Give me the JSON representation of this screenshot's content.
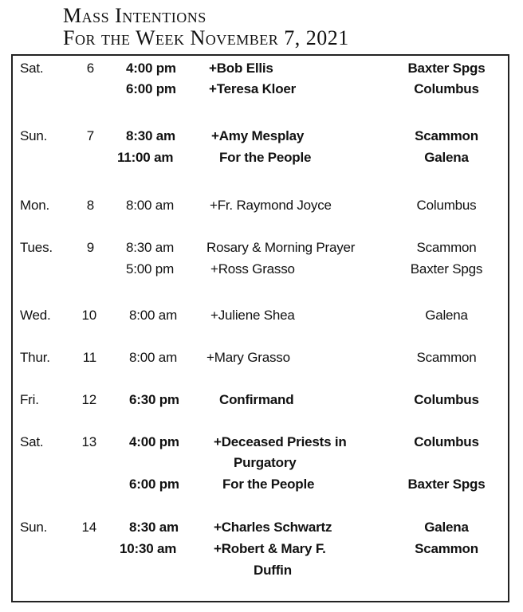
{
  "title": {
    "line1": "Mass Intentions",
    "line2": "For the Week November 7, 2021"
  },
  "lines": [
    {
      "day": "Sat.",
      "date": "6",
      "time": "4:00 pm",
      "intention": "+Bob Ellis",
      "location": "Baxter Spgs",
      "bold": true
    },
    {
      "day": "",
      "date": "",
      "time": "6:00 pm",
      "intention": "+Teresa Kloer",
      "location": "Columbus",
      "bold": true
    },
    {
      "day": "Sun.",
      "date": "7",
      "time": "8:30 am",
      "intention": "+Amy Mesplay",
      "location": "Scammon",
      "bold": true
    },
    {
      "day": "",
      "date": "",
      "time": "11:00 am",
      "intention": "For the People",
      "location": "Galena",
      "bold": true
    },
    {
      "day": "Mon.",
      "date": "8",
      "time": "8:00 am",
      "intention": "+Fr. Raymond Joyce",
      "location": "Columbus",
      "bold": false
    },
    {
      "day": "Tues.",
      "date": "9",
      "time": "8:30 am",
      "intention": "Rosary & Morning Prayer",
      "location": "Scammon",
      "bold": false
    },
    {
      "day": "",
      "date": "",
      "time": "5:00 pm",
      "intention": "+Ross Grasso",
      "location": "Baxter Spgs",
      "bold": false
    },
    {
      "day": "Wed.",
      "date": "10",
      "time": "8:00 am",
      "intention": "+Juliene Shea",
      "location": "Galena",
      "bold": false
    },
    {
      "day": "Thur.",
      "date": "11",
      "time": "8:00 am",
      "intention": "+Mary Grasso",
      "location": "Scammon",
      "bold": false
    },
    {
      "day": "Fri.",
      "date": "12",
      "time": "6:30 pm",
      "intention": "Confirmand",
      "location": "Columbus",
      "bold": true
    },
    {
      "day": "Sat.",
      "date": "13",
      "time": "4:00 pm",
      "intention": "+Deceased Priests in",
      "location": "Columbus",
      "bold": true
    },
    {
      "day": "",
      "date": "",
      "time": "",
      "intention": "Purgatory",
      "location": "",
      "bold": true
    },
    {
      "day": "",
      "date": "",
      "time": "6:00 pm",
      "intention": "For the People",
      "location": "Baxter Spgs",
      "bold": true
    },
    {
      "day": "Sun.",
      "date": "14",
      "time": "8:30 am",
      "intention": "+Charles Schwartz",
      "location": "Galena",
      "bold": true
    },
    {
      "day": "",
      "date": "",
      "time": "10:30 am",
      "intention": "+Robert & Mary F.",
      "location": "Scammon",
      "bold": true
    },
    {
      "day": "",
      "date": "",
      "time": "",
      "intention": "Duffin",
      "location": "",
      "bold": true
    }
  ]
}
